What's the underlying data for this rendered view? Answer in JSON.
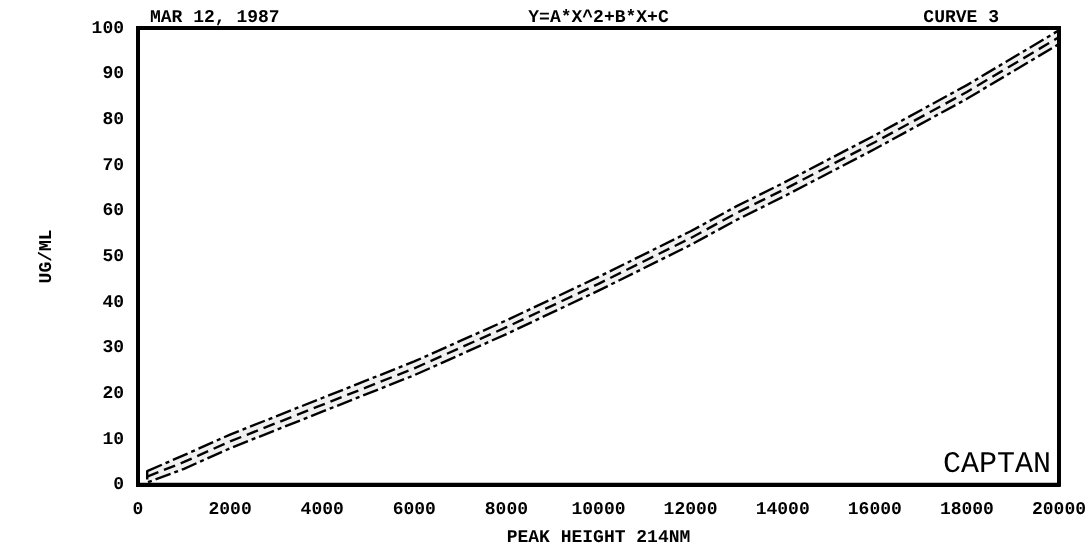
{
  "chart_data": {
    "type": "line",
    "title": "Y=A*X^2+B*X+C",
    "xlabel": "PEAK HEIGHT 214NM",
    "ylabel": "UG/ML",
    "annotations": [
      "MAR 12, 1987",
      "CURVE 3",
      "CAPTAN"
    ],
    "x": [
      200,
      1000,
      2000,
      4000,
      6000,
      8000,
      10000,
      12000,
      13000,
      14000,
      16000,
      18000,
      20000
    ],
    "series": [
      {
        "color": "#000000",
        "values": [
          1.8,
          5,
          9.5,
          17.5,
          25.5,
          34.5,
          44,
          54,
          59.5,
          64.5,
          75,
          86,
          98
        ],
        "lower": [
          0.5,
          3.5,
          8,
          16,
          24,
          33,
          42.5,
          52.5,
          58,
          63,
          73.5,
          84.5,
          96.5
        ],
        "upper": [
          3,
          6.5,
          11,
          19,
          27,
          36,
          45.5,
          55.5,
          61,
          66,
          76.5,
          87.5,
          99.5
        ]
      }
    ],
    "xlim": [
      0,
      20000
    ],
    "xticks": [
      0,
      2000,
      4000,
      6000,
      8000,
      10000,
      12000,
      14000,
      16000,
      18000,
      20000
    ],
    "ylim": [
      0,
      100
    ],
    "yticks": [
      0,
      10,
      20,
      30,
      40,
      50,
      60,
      70,
      80,
      90,
      100
    ],
    "grid": false,
    "legend": false,
    "marker": "none",
    "line_style": "dashed"
  }
}
